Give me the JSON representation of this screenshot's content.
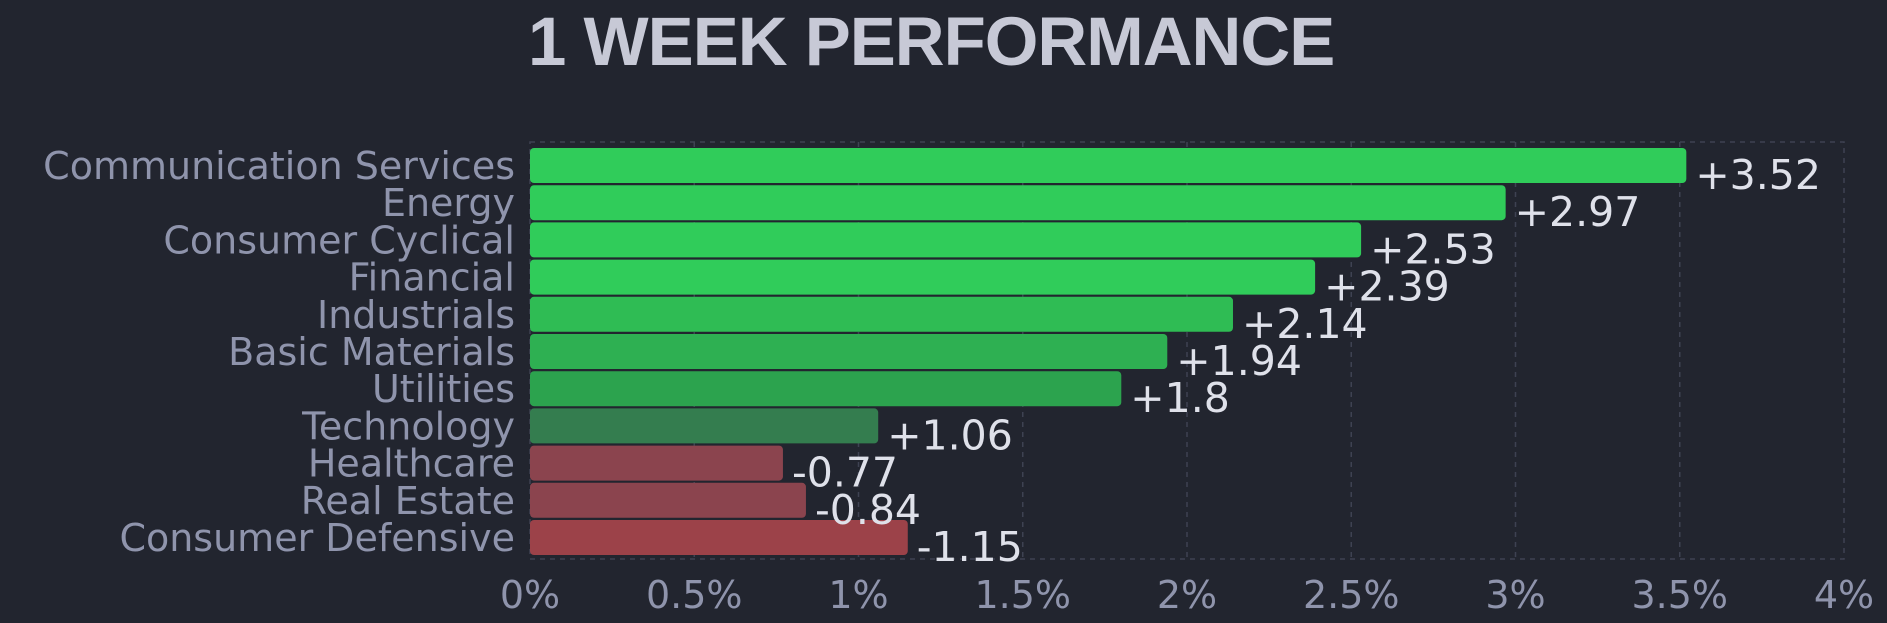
{
  "chart_data": {
    "type": "bar",
    "orientation": "horizontal",
    "title": "1 WEEK PERFORMANCE",
    "categories": [
      "Communication Services",
      "Energy",
      "Consumer Cyclical",
      "Financial",
      "Industrials",
      "Basic Materials",
      "Utilities",
      "Technology",
      "Healthcare",
      "Real Estate",
      "Consumer Defensive"
    ],
    "values": [
      3.52,
      2.97,
      2.53,
      2.39,
      2.14,
      1.94,
      1.8,
      1.06,
      -0.77,
      -0.84,
      -1.15
    ],
    "value_labels": [
      "+3.52",
      "+2.97",
      "+2.53",
      "+2.39",
      "+2.14",
      "+1.94",
      "+1.8",
      "+1.06",
      "-0.77",
      "-0.84",
      "-1.15"
    ],
    "bar_colors": [
      "#30cc5a",
      "#30cc5a",
      "#30cc5a",
      "#30cc5a",
      "#2fbc54",
      "#2eb052",
      "#2ca34e",
      "#347d4f",
      "#8b444e",
      "#8b444e",
      "#9c4249"
    ],
    "xlim": [
      0,
      4
    ],
    "x_ticks": [
      0,
      0.5,
      1,
      1.5,
      2,
      2.5,
      3,
      3.5,
      4
    ],
    "x_tick_labels": [
      "0%",
      "0.5%",
      "1%",
      "1.5%",
      "2%",
      "2.5%",
      "3%",
      "3.5%",
      "4%"
    ],
    "xlabel": "",
    "ylabel": "",
    "grid": true,
    "bar_magnitude": "absolute",
    "legend": "none"
  }
}
